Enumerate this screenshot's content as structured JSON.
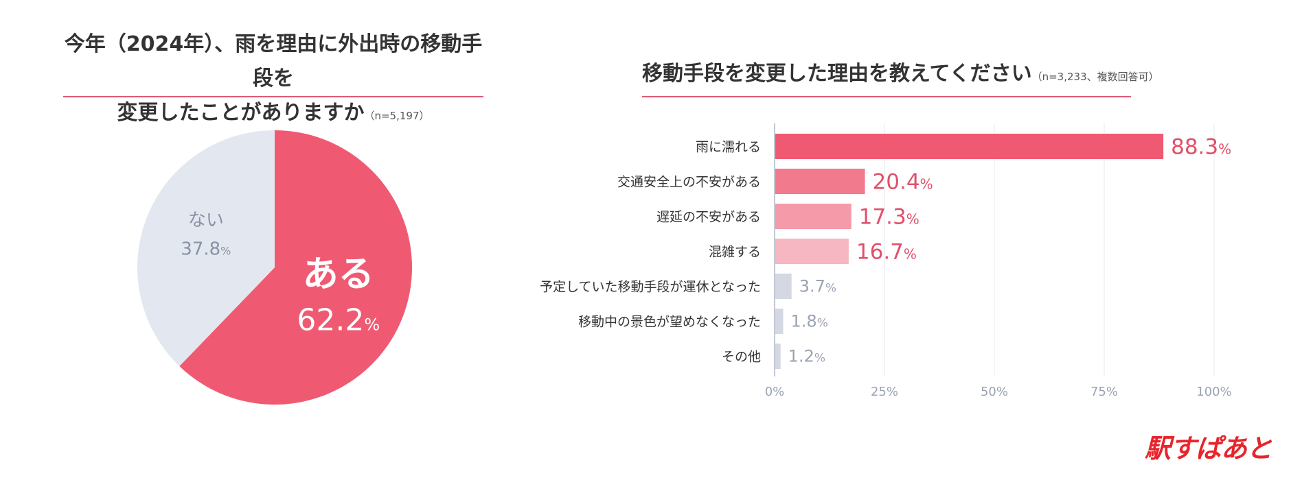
{
  "left": {
    "title_line1": "今年（2024年）、雨を理由に外出時の移動手段を",
    "title_line2": "変更したことがありますか",
    "note": "（n=5,197）"
  },
  "right": {
    "title": "移動手段を変更した理由を教えてください",
    "note": "（n=3,233、複数回答可）"
  },
  "brand": "駅すぱあと",
  "colors": {
    "accent": "#ef5a72",
    "pie_other": "#e3e7ef",
    "muted_text": "#8a93a6",
    "muted_bar": "#d3d8e2",
    "rule": "#e05a72",
    "grid": "#e6e8ee",
    "bar_shades": [
      "#ef5a72",
      "#f27a8d",
      "#f49aa9",
      "#f6b7c2",
      "#d3d8e2",
      "#d3d8e2",
      "#d3d8e2"
    ]
  },
  "chart_data": [
    {
      "type": "pie",
      "title": "今年（2024年）、雨を理由に外出時の移動手段を変更したことがありますか",
      "slices": [
        {
          "label": "ある",
          "value": 62.2,
          "display": "62.2"
        },
        {
          "label": "ない",
          "value": 37.8,
          "display": "37.8"
        }
      ],
      "unit": "%"
    },
    {
      "type": "bar",
      "orientation": "horizontal",
      "title": "移動手段を変更した理由を教えてください",
      "categories": [
        "雨に濡れる",
        "交通安全上の不安がある",
        "遅延の不安がある",
        "混雑する",
        "予定していた移動手段が運休となった",
        "移動中の景色が望めなくなった",
        "その他"
      ],
      "values": [
        88.3,
        20.4,
        17.3,
        16.7,
        3.7,
        1.8,
        1.2
      ],
      "labels": [
        "88.3",
        "20.4",
        "17.3",
        "16.7",
        "3.7",
        "1.8",
        "1.2"
      ],
      "unit": "%",
      "xlim": [
        0,
        100
      ],
      "xticks": [
        "0%",
        "25%",
        "50%",
        "75%",
        "100%"
      ],
      "grid": true
    }
  ]
}
